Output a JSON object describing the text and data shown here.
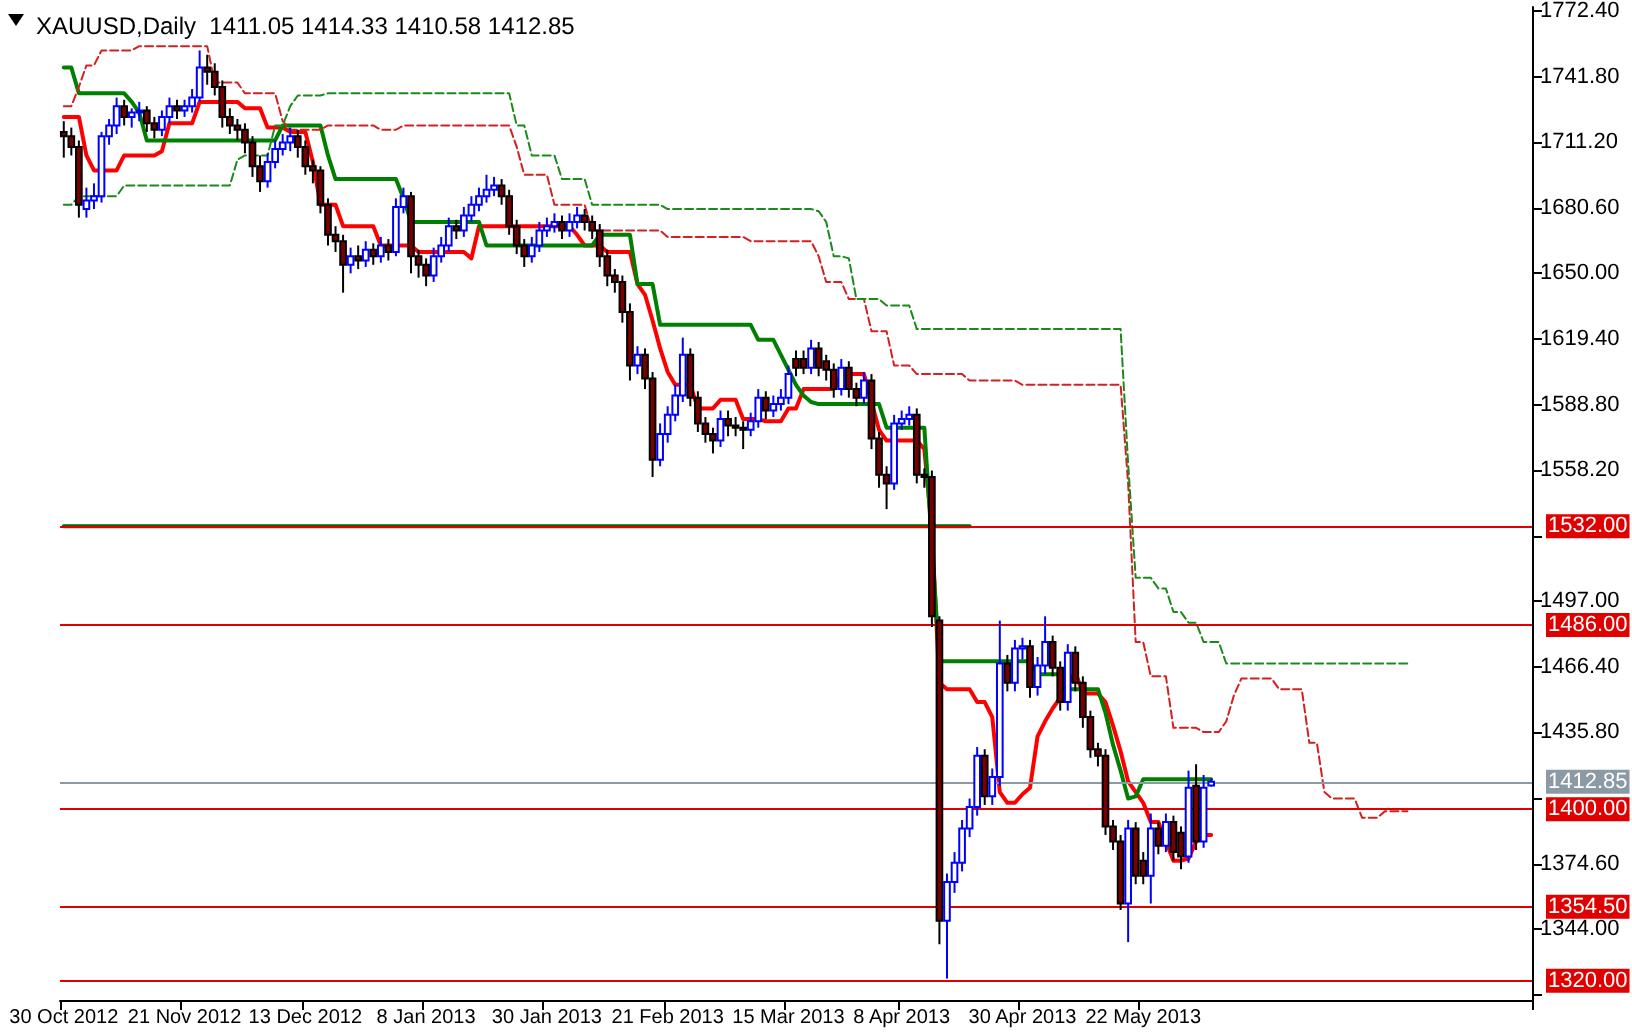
{
  "chart_data": {
    "type": "candlestick",
    "title": "XAUUSD,Daily  1411.05 1414.33 1410.58 1412.85",
    "categories": [
      "30 Oct 2012",
      null,
      null,
      null,
      null,
      null,
      null,
      null,
      null,
      null,
      null,
      null,
      null,
      null,
      null,
      null,
      "21 Nov 2012",
      null,
      null,
      null,
      null,
      null,
      null,
      null,
      null,
      null,
      null,
      null,
      null,
      null,
      null,
      null,
      "13 Dec 2012",
      null,
      null,
      null,
      null,
      null,
      null,
      null,
      null,
      null,
      null,
      null,
      null,
      null,
      null,
      null,
      "8 Jan 2013",
      null,
      null,
      null,
      null,
      null,
      null,
      null,
      null,
      null,
      null,
      null,
      null,
      null,
      null,
      null,
      "30 Jan 2013",
      null,
      null,
      null,
      null,
      null,
      null,
      null,
      null,
      null,
      null,
      null,
      null,
      null,
      null,
      null,
      "21 Feb 2013",
      null,
      null,
      null,
      null,
      null,
      null,
      null,
      null,
      null,
      null,
      null,
      null,
      null,
      null,
      null,
      "15 Mar 2013",
      null,
      null,
      null,
      null,
      null,
      null,
      null,
      null,
      null,
      null,
      null,
      null,
      null,
      null,
      "8 Apr 2013",
      null,
      null,
      null,
      null,
      null,
      null,
      null,
      null,
      null,
      null,
      null,
      null,
      null,
      null,
      null,
      "30 Apr 2013",
      null,
      null,
      null,
      null,
      null,
      null,
      null,
      null,
      null,
      null,
      null,
      null,
      null,
      null,
      null,
      "22 May 2013",
      null,
      null,
      null,
      null,
      null,
      null,
      null,
      null,
      null,
      null,
      null,
      null,
      null,
      null,
      null,
      null,
      null,
      null,
      null,
      null,
      null,
      null,
      null,
      null,
      null,
      null,
      null,
      null,
      null,
      null,
      null,
      null,
      null,
      null,
      null,
      null,
      null,
      null,
      null,
      null,
      null,
      null,
      null,
      null,
      null,
      null,
      null,
      null,
      null,
      null,
      null
    ],
    "ohlc": [
      [
        1716,
        1721,
        1704,
        1714
      ],
      [
        1714,
        1718,
        1705,
        1709
      ],
      [
        1709,
        1712,
        1676,
        1682
      ],
      [
        1680,
        1690,
        1676,
        1684
      ],
      [
        1684,
        1692,
        1680,
        1686
      ],
      [
        1686,
        1716,
        1683,
        1714
      ],
      [
        1714,
        1722,
        1710,
        1719
      ],
      [
        1719,
        1732,
        1715,
        1728
      ],
      [
        1728,
        1731,
        1719,
        1723
      ],
      [
        1723,
        1727,
        1718,
        1725
      ],
      [
        1725,
        1730,
        1721,
        1726
      ],
      [
        1726,
        1728,
        1716,
        1720
      ],
      [
        1720,
        1723,
        1713,
        1717
      ],
      [
        1717,
        1726,
        1714,
        1723
      ],
      [
        1723,
        1732,
        1720,
        1728
      ],
      [
        1728,
        1731,
        1722,
        1726
      ],
      [
        1726,
        1731,
        1723,
        1728
      ],
      [
        1728,
        1736,
        1725,
        1732
      ],
      [
        1732,
        1754,
        1730,
        1746
      ],
      [
        1746,
        1752,
        1738,
        1744
      ],
      [
        1744,
        1748,
        1733,
        1737
      ],
      [
        1737,
        1740,
        1718,
        1723
      ],
      [
        1723,
        1727,
        1715,
        1719
      ],
      [
        1719,
        1722,
        1712,
        1717
      ],
      [
        1717,
        1720,
        1706,
        1711
      ],
      [
        1711,
        1714,
        1695,
        1700
      ],
      [
        1700,
        1705,
        1688,
        1693
      ],
      [
        1693,
        1706,
        1690,
        1702
      ],
      [
        1702,
        1712,
        1699,
        1708
      ],
      [
        1708,
        1715,
        1705,
        1711
      ],
      [
        1711,
        1718,
        1707,
        1714
      ],
      [
        1714,
        1717,
        1704,
        1709
      ],
      [
        1709,
        1712,
        1696,
        1700
      ],
      [
        1700,
        1703,
        1692,
        1698
      ],
      [
        1698,
        1700,
        1678,
        1682
      ],
      [
        1682,
        1685,
        1663,
        1668
      ],
      [
        1668,
        1672,
        1660,
        1665
      ],
      [
        1665,
        1668,
        1641,
        1654
      ],
      [
        1654,
        1662,
        1650,
        1658
      ],
      [
        1658,
        1663,
        1652,
        1656
      ],
      [
        1656,
        1665,
        1653,
        1661
      ],
      [
        1661,
        1664,
        1654,
        1658
      ],
      [
        1658,
        1667,
        1655,
        1663
      ],
      [
        1663,
        1666,
        1656,
        1660
      ],
      [
        1660,
        1685,
        1658,
        1681
      ],
      [
        1681,
        1690,
        1678,
        1686
      ],
      [
        1686,
        1688,
        1650,
        1658
      ],
      [
        1658,
        1661,
        1648,
        1654
      ],
      [
        1654,
        1657,
        1644,
        1649
      ],
      [
        1649,
        1662,
        1646,
        1658
      ],
      [
        1658,
        1667,
        1655,
        1663
      ],
      [
        1663,
        1676,
        1660,
        1672
      ],
      [
        1672,
        1675,
        1666,
        1670
      ],
      [
        1670,
        1681,
        1667,
        1677
      ],
      [
        1677,
        1686,
        1674,
        1682
      ],
      [
        1682,
        1690,
        1679,
        1686
      ],
      [
        1686,
        1696,
        1683,
        1689
      ],
      [
        1689,
        1695,
        1686,
        1691
      ],
      [
        1691,
        1694,
        1682,
        1686
      ],
      [
        1686,
        1689,
        1668,
        1672
      ],
      [
        1672,
        1675,
        1659,
        1663
      ],
      [
        1663,
        1666,
        1653,
        1658
      ],
      [
        1658,
        1667,
        1655,
        1663
      ],
      [
        1663,
        1674,
        1660,
        1670
      ],
      [
        1670,
        1676,
        1667,
        1672
      ],
      [
        1672,
        1678,
        1669,
        1674
      ],
      [
        1674,
        1677,
        1666,
        1670
      ],
      [
        1670,
        1678,
        1667,
        1674
      ],
      [
        1674,
        1681,
        1671,
        1677
      ],
      [
        1677,
        1680,
        1670,
        1674
      ],
      [
        1674,
        1677,
        1666,
        1670
      ],
      [
        1670,
        1673,
        1653,
        1658
      ],
      [
        1658,
        1661,
        1644,
        1649
      ],
      [
        1649,
        1652,
        1641,
        1646
      ],
      [
        1646,
        1649,
        1627,
        1632
      ],
      [
        1632,
        1636,
        1600,
        1607
      ],
      [
        1607,
        1616,
        1603,
        1612
      ],
      [
        1612,
        1615,
        1596,
        1601
      ],
      [
        1601,
        1604,
        1555,
        1563
      ],
      [
        1563,
        1580,
        1560,
        1575
      ],
      [
        1575,
        1588,
        1571,
        1584
      ],
      [
        1584,
        1598,
        1581,
        1593
      ],
      [
        1593,
        1620,
        1590,
        1612
      ],
      [
        1612,
        1615,
        1588,
        1592
      ],
      [
        1592,
        1595,
        1576,
        1580
      ],
      [
        1580,
        1583,
        1571,
        1575
      ],
      [
        1575,
        1578,
        1566,
        1572
      ],
      [
        1572,
        1586,
        1569,
        1582
      ],
      [
        1582,
        1586,
        1574,
        1579
      ],
      [
        1579,
        1583,
        1574,
        1578
      ],
      [
        1578,
        1581,
        1568,
        1577
      ],
      [
        1577,
        1585,
        1574,
        1581
      ],
      [
        1581,
        1596,
        1578,
        1592
      ],
      [
        1592,
        1595,
        1582,
        1586
      ],
      [
        1586,
        1593,
        1583,
        1589
      ],
      [
        1589,
        1596,
        1586,
        1592
      ],
      [
        1592,
        1607,
        1589,
        1603
      ],
      [
        1610,
        1614,
        1602,
        1606
      ],
      [
        1610,
        1614,
        1603,
        1606
      ],
      [
        1606,
        1619,
        1603,
        1615
      ],
      [
        1615,
        1618,
        1602,
        1606
      ],
      [
        1609,
        1612,
        1600,
        1605
      ],
      [
        1605,
        1608,
        1592,
        1596
      ],
      [
        1596,
        1610,
        1593,
        1606
      ],
      [
        1606,
        1609,
        1592,
        1596
      ],
      [
        1596,
        1599,
        1588,
        1592
      ],
      [
        1592,
        1604,
        1589,
        1600
      ],
      [
        1600,
        1603,
        1568,
        1573
      ],
      [
        1573,
        1576,
        1550,
        1556
      ],
      [
        1556,
        1560,
        1540,
        1552
      ],
      [
        1552,
        1584,
        1549,
        1580
      ],
      [
        1580,
        1586,
        1577,
        1582
      ],
      [
        1582,
        1588,
        1579,
        1584
      ],
      [
        1584,
        1587,
        1552,
        1556
      ],
      [
        1556,
        1559,
        1550,
        1555
      ],
      [
        1555,
        1558,
        1485,
        1490
      ],
      [
        1488,
        1490,
        1337,
        1348
      ],
      [
        1348,
        1370,
        1321,
        1366
      ],
      [
        1366,
        1380,
        1361,
        1375
      ],
      [
        1375,
        1395,
        1371,
        1391
      ],
      [
        1391,
        1405,
        1387,
        1401
      ],
      [
        1401,
        1429,
        1397,
        1425
      ],
      [
        1425,
        1428,
        1402,
        1406
      ],
      [
        1406,
        1419,
        1402,
        1415
      ],
      [
        1415,
        1488,
        1411,
        1468
      ],
      [
        1468,
        1472,
        1455,
        1459
      ],
      [
        1459,
        1479,
        1455,
        1475
      ],
      [
        1475,
        1480,
        1470,
        1476
      ],
      [
        1476,
        1479,
        1452,
        1457
      ],
      [
        1457,
        1471,
        1453,
        1467
      ],
      [
        1467,
        1490,
        1463,
        1478
      ],
      [
        1478,
        1481,
        1462,
        1466
      ],
      [
        1466,
        1469,
        1446,
        1450
      ],
      [
        1450,
        1477,
        1446,
        1473
      ],
      [
        1473,
        1476,
        1455,
        1459
      ],
      [
        1459,
        1462,
        1438,
        1443
      ],
      [
        1443,
        1446,
        1424,
        1428
      ],
      [
        1428,
        1431,
        1420,
        1425
      ],
      [
        1425,
        1428,
        1388,
        1392
      ],
      [
        1392,
        1395,
        1381,
        1385
      ],
      [
        1385,
        1388,
        1353,
        1356
      ],
      [
        1356,
        1395,
        1338,
        1391
      ],
      [
        1391,
        1394,
        1365,
        1369
      ],
      [
        1376,
        1380,
        1365,
        1369
      ],
      [
        1369,
        1398,
        1356,
        1391
      ],
      [
        1391,
        1394,
        1379,
        1383
      ],
      [
        1383,
        1398,
        1380,
        1394
      ],
      [
        1394,
        1397,
        1376,
        1380
      ],
      [
        1389,
        1392,
        1372,
        1378
      ],
      [
        1378,
        1418,
        1375,
        1410
      ],
      [
        1411,
        1421,
        1381,
        1385
      ],
      [
        1385,
        1416,
        1382,
        1410
      ],
      [
        1411.05,
        1414.33,
        1410.58,
        1412.85
      ],
      null,
      null,
      null,
      null,
      null,
      null,
      null,
      null,
      null,
      null,
      null,
      null,
      null,
      null,
      null,
      null,
      null,
      null,
      null,
      null,
      null,
      null,
      null,
      null,
      null,
      null,
      null,
      null,
      null,
      null,
      null,
      null,
      null,
      null,
      null,
      null,
      null,
      null,
      null,
      null,
      null,
      null
    ],
    "series": [
      {
        "type": "line",
        "color": "#ff0000",
        "line_style": "solid",
        "values": [
          1723,
          1723,
          1723,
          1705,
          1698,
          1698,
          1698,
          1698,
          1705,
          1705,
          1705,
          1705,
          1705,
          1707,
          1720,
          1720,
          1720,
          1720,
          1730,
          1730,
          1730,
          1730,
          1730,
          1730,
          1727,
          1727,
          1727,
          1718,
          1718,
          1718,
          1716,
          1716,
          1716,
          1702,
          1682,
          1682,
          1682,
          1672,
          1672,
          1672,
          1672,
          1672,
          1663,
          1663,
          1663,
          1663,
          1663,
          1660,
          1660,
          1660,
          1660,
          1660,
          1660,
          1660,
          1657,
          1672,
          1672,
          1672,
          1672,
          1672,
          1672,
          1672,
          1672,
          1672,
          1672,
          1672,
          1672,
          1672,
          1668,
          1663,
          1663,
          1663,
          1660,
          1660,
          1660,
          1660,
          1645,
          1640,
          1628,
          1615,
          1604,
          1598,
          1598,
          1598,
          1587,
          1587,
          1587,
          1591,
          1591,
          1591,
          1582,
          1582,
          1582,
          1581,
          1581,
          1581,
          1587,
          1587,
          1596,
          1596,
          1596,
          1596,
          1596,
          1603,
          1603,
          1603,
          1603,
          null,
          1577,
          1572,
          1572,
          1572,
          1572,
          1572,
          1568,
          1530,
          1459,
          1456,
          1456,
          1456,
          1456,
          1450,
          1450,
          1443,
          1408,
          1403,
          1403,
          1407,
          1410,
          1434,
          1441,
          1447,
          1452,
          null,
          1464,
          1454,
          1454,
          1454,
          1450,
          1439,
          1427,
          1413,
          1408,
          1403,
          1394,
          1394,
          1385,
          1376,
          1376,
          1377,
          1385,
          1388,
          1388,
          null,
          null,
          null,
          null,
          null,
          null,
          null,
          null,
          null,
          null,
          null,
          null,
          null,
          null,
          null,
          null,
          null,
          null,
          null,
          null,
          null,
          null,
          null,
          null,
          null,
          null,
          null,
          null,
          null,
          null,
          null,
          null,
          null,
          null,
          null,
          null,
          null,
          null,
          null,
          null,
          null,
          null
        ]
      },
      {
        "type": "line",
        "color": "#008000",
        "line_style": "solid",
        "values": [
          1746,
          1746,
          1734,
          1734,
          1734,
          1734,
          1734,
          1734,
          1734,
          1730,
          1725,
          1712,
          1712,
          1712,
          1712,
          1712,
          1712,
          1712,
          1712,
          1712,
          1712,
          1712,
          1712,
          1712,
          1712,
          1712,
          1712,
          1712,
          1712,
          1719,
          1719,
          1719,
          1719,
          1719,
          1719,
          1705,
          1694,
          1694,
          1694,
          1694,
          1694,
          1694,
          1694,
          1694,
          1694,
          1685,
          1674,
          1674,
          1674,
          1674,
          1674,
          1674,
          1674,
          1674,
          1674,
          1674,
          1663,
          1663,
          1663,
          1663,
          1663,
          1663,
          1663,
          1663,
          1663,
          1663,
          1663,
          1663,
          1663,
          1663,
          1663,
          1668,
          1668,
          1668,
          1668,
          1668,
          1645,
          1645,
          1645,
          1626,
          1626,
          1626,
          1626,
          1626,
          1626,
          1626,
          1626,
          1626,
          1626,
          1626,
          1626,
          1626,
          1619,
          1619,
          1619,
          1612,
          1605,
          1598,
          1593,
          1590,
          1589,
          1589,
          1589,
          1589,
          1589,
          1589,
          1589,
          1589,
          1589,
          1578,
          1578,
          1578,
          1578,
          1578,
          1578,
          null,
          1469,
          1469,
          1469,
          1469,
          1469,
          1469,
          1469,
          1469,
          1469,
          1469,
          1469,
          1469,
          1469,
          1463,
          1463,
          1463,
          1463,
          1456,
          1456,
          1456,
          1456,
          1456,
          1445,
          1430,
          1418,
          1405,
          1406,
          1414,
          1414,
          1414,
          1414,
          1414,
          1414,
          1414,
          1414,
          1414,
          1414,
          null,
          null,
          null,
          null,
          null,
          null,
          null,
          null,
          null,
          null,
          null,
          null,
          null,
          null,
          null,
          null,
          null,
          null,
          null,
          null,
          null,
          null,
          null,
          null,
          null,
          null,
          null,
          null,
          null,
          null,
          null,
          null,
          null,
          null,
          null,
          null,
          null,
          null,
          null,
          null,
          null,
          null
        ]
      },
      {
        "type": "line",
        "color": "#d42020",
        "line_style": "dashed",
        "values": [
          1728,
          1728,
          1737,
          1747,
          1747,
          1754,
          1754,
          1754,
          1754,
          1754,
          1756,
          1756,
          1756,
          1756,
          1756,
          1756,
          1756,
          1756,
          1756,
          1756,
          1739,
          1739,
          1739,
          1739,
          1734,
          1734,
          1734,
          1734,
          1734,
          1721,
          1717,
          1717,
          1717,
          1717,
          1717,
          1719,
          1719,
          1719,
          1719,
          1719,
          1719,
          1719,
          1717,
          1717,
          1717,
          1719,
          1719,
          1719,
          1719,
          1719,
          1719,
          1719,
          1719,
          1719,
          1719,
          1719,
          1719,
          1719,
          1719,
          1719,
          1709,
          1696,
          1696,
          1696,
          1696,
          1682,
          1682,
          1682,
          1682,
          1682,
          1670,
          1670,
          1670,
          1670,
          1670,
          1670,
          1670,
          1670,
          1670,
          1670,
          1667,
          1667,
          1667,
          1667,
          1667,
          1667,
          1667,
          1667,
          1667,
          1667,
          1667,
          1665,
          1665,
          1665,
          1665,
          1665,
          1665,
          1665,
          1665,
          1665,
          1658,
          1646,
          1646,
          1646,
          1638,
          1638,
          1638,
          1623,
          1623,
          1623,
          1607,
          1607,
          1607,
          1603,
          1603,
          1603,
          1603,
          1603,
          1603,
          1603,
          1600,
          1600,
          1600,
          1600,
          1600,
          1600,
          1600,
          1598,
          1598,
          1598,
          1598,
          1598,
          1598,
          1598,
          1598,
          1598,
          1598,
          1598,
          1598,
          1598,
          1598,
          1552,
          1478,
          1478,
          1462,
          1462,
          1462,
          1438,
          1438,
          1438,
          1438,
          1436,
          1436,
          1436,
          1441,
          1453,
          1461,
          1461,
          1461,
          1461,
          1461,
          1456,
          1456,
          1456,
          1456,
          1431,
          1431,
          1408,
          1405,
          1405,
          1405,
          1405,
          1396,
          1396,
          1396,
          1399,
          1399,
          1399,
          1399,
          null,
          null,
          null,
          null,
          null,
          null,
          null,
          null,
          null,
          null,
          null,
          null,
          null,
          null,
          null,
          null
        ]
      },
      {
        "type": "line",
        "color": "#1a8a1a",
        "line_style": "dashed",
        "values": [
          1682,
          1682,
          1686,
          1686,
          1686,
          1686,
          1686,
          1686,
          1691,
          1691,
          1691,
          1691,
          1691,
          1691,
          1691,
          1691,
          1691,
          1691,
          1691,
          1691,
          1691,
          1691,
          1691,
          1703,
          1705,
          1705,
          1705,
          1705,
          1719,
          1719,
          1728,
          1733,
          1733,
          1733,
          1733,
          1734,
          1734,
          1734,
          1734,
          1734,
          1734,
          1734,
          1734,
          1734,
          1734,
          1734,
          1734,
          1734,
          1734,
          1734,
          1734,
          1734,
          1734,
          1734,
          1734,
          1734,
          1734,
          1734,
          1734,
          1734,
          1719,
          1719,
          1705,
          1705,
          1705,
          1705,
          1694,
          1694,
          1694,
          1694,
          1682,
          1682,
          1682,
          1682,
          1682,
          1682,
          1682,
          1682,
          1682,
          1682,
          1680,
          1680,
          1680,
          1680,
          1680,
          1680,
          1680,
          1680,
          1680,
          1680,
          1680,
          1680,
          1680,
          1680,
          1680,
          1680,
          1680,
          1680,
          1680,
          1680,
          1679,
          1674,
          1658,
          1658,
          1657,
          1638,
          1638,
          1638,
          1638,
          1635,
          1635,
          1635,
          1635,
          1624,
          1624,
          1624,
          1624,
          1624,
          1624,
          1624,
          1624,
          1624,
          1624,
          1624,
          1624,
          1624,
          1624,
          1624,
          1624,
          1624,
          1624,
          1624,
          1624,
          1624,
          1624,
          1624,
          1624,
          1624,
          1624,
          1624,
          1624,
          1561,
          1508,
          1508,
          1508,
          1503,
          1503,
          1492,
          1492,
          1487,
          1487,
          1478,
          1478,
          1478,
          1468,
          1468,
          1468,
          1468,
          1468,
          1468,
          1468,
          1468,
          1468,
          1468,
          1468,
          1468,
          1468,
          1468,
          1468,
          1468,
          1468,
          1468,
          1468,
          1468,
          1468,
          1468,
          1468,
          1468,
          1468,
          null,
          null,
          null,
          null,
          null,
          null,
          null,
          null,
          null,
          null,
          null,
          null,
          null,
          null,
          null,
          null
        ]
      },
      {
        "type": "line",
        "color": "#006400",
        "line_style": "solid",
        "values": [
          1532,
          1532,
          1532,
          1532,
          1532,
          1532,
          1532,
          1532,
          1532,
          1532,
          1532,
          1532,
          1532,
          1532,
          1532,
          1532,
          1532,
          1532,
          1532,
          1532,
          1532,
          1532,
          1532,
          1532,
          1532,
          1532,
          1532,
          1532,
          1532,
          1532,
          1532,
          1532,
          1532,
          1532,
          1532,
          1532,
          1532,
          1532,
          1532,
          1532,
          1532,
          1532,
          1532,
          1532,
          1532,
          1532,
          1532,
          1532,
          1532,
          1532,
          1532,
          1532,
          1532,
          1532,
          1532,
          1532,
          1532,
          1532,
          1532,
          1532,
          1532,
          1532,
          1532,
          1532,
          1532,
          1532,
          1532,
          1532,
          1532,
          1532,
          1532,
          1532,
          1532,
          1532,
          1532,
          1532,
          1532,
          1532,
          1532,
          1532,
          1532,
          1532,
          1532,
          1532,
          1532,
          1532,
          1532,
          1532,
          1532,
          1532,
          1532,
          1532,
          1532,
          1532,
          1532,
          1532,
          1532,
          1532,
          1532,
          1532,
          1532,
          1532,
          1532,
          1532,
          1532,
          1532,
          1532,
          1532,
          1532,
          1532,
          1532,
          1532,
          1532,
          1532,
          1532,
          1532,
          1532,
          1532,
          1532,
          1532,
          1532,
          null,
          null,
          null,
          null,
          null,
          null,
          null,
          null,
          null,
          null,
          null,
          null,
          null,
          null,
          null,
          null,
          null,
          null,
          null,
          null,
          null,
          null,
          null,
          null,
          null,
          null,
          null,
          null,
          null,
          null,
          null,
          null,
          null,
          null,
          null,
          null,
          null,
          null,
          null,
          null,
          null,
          null,
          null,
          null,
          null,
          null,
          null,
          null,
          null,
          null,
          null,
          null,
          null,
          null,
          null,
          null,
          null,
          null,
          null,
          null,
          null,
          null,
          null,
          null,
          null,
          null,
          null,
          null,
          null,
          null,
          null,
          null,
          null,
          null
        ]
      }
    ],
    "ref_lines": [
      {
        "axis": "y",
        "value": 1532,
        "label": "1532.00",
        "color": "#e00000"
      },
      {
        "axis": "y",
        "value": 1486,
        "label": "1486.00",
        "color": "#e00000"
      },
      {
        "axis": "y",
        "value": 1412.85,
        "label": "1412.85",
        "color": "#8c9aa6"
      },
      {
        "axis": "y",
        "value": 1400,
        "label": "1400.00",
        "color": "#e00000"
      },
      {
        "axis": "y",
        "value": 1354.5,
        "label": "1354.50",
        "color": "#e00000"
      },
      {
        "axis": "y",
        "value": 1320,
        "label": "1320.00",
        "color": "#e00000"
      }
    ],
    "ylim": [
      1311,
      1774.3
    ],
    "yticks": [
      {
        "value": 1772.4,
        "label": "1772.40"
      },
      {
        "value": 1741.8,
        "label": "1741.80"
      },
      {
        "value": 1711.2,
        "label": "1711.20"
      },
      {
        "value": 1680.6,
        "label": "1680.60"
      },
      {
        "value": 1650,
        "label": "1650.00"
      },
      {
        "value": 1619.4,
        "label": "1619.40"
      },
      {
        "value": 1588.8,
        "label": "1588.80"
      },
      {
        "value": 1558.2,
        "label": "1558.20"
      },
      {
        "value": 1527.6,
        "label": null
      },
      {
        "value": 1497,
        "label": "1497.00"
      },
      {
        "value": 1466.4,
        "label": "1466.40"
      },
      {
        "value": 1435.8,
        "label": "1435.80"
      },
      {
        "value": 1405.2,
        "label": null
      },
      {
        "value": 1374.6,
        "label": "1374.60"
      },
      {
        "value": 1344,
        "label": "1344.00"
      },
      {
        "value": 1313.4,
        "label": null
      }
    ],
    "marker": "none"
  }
}
